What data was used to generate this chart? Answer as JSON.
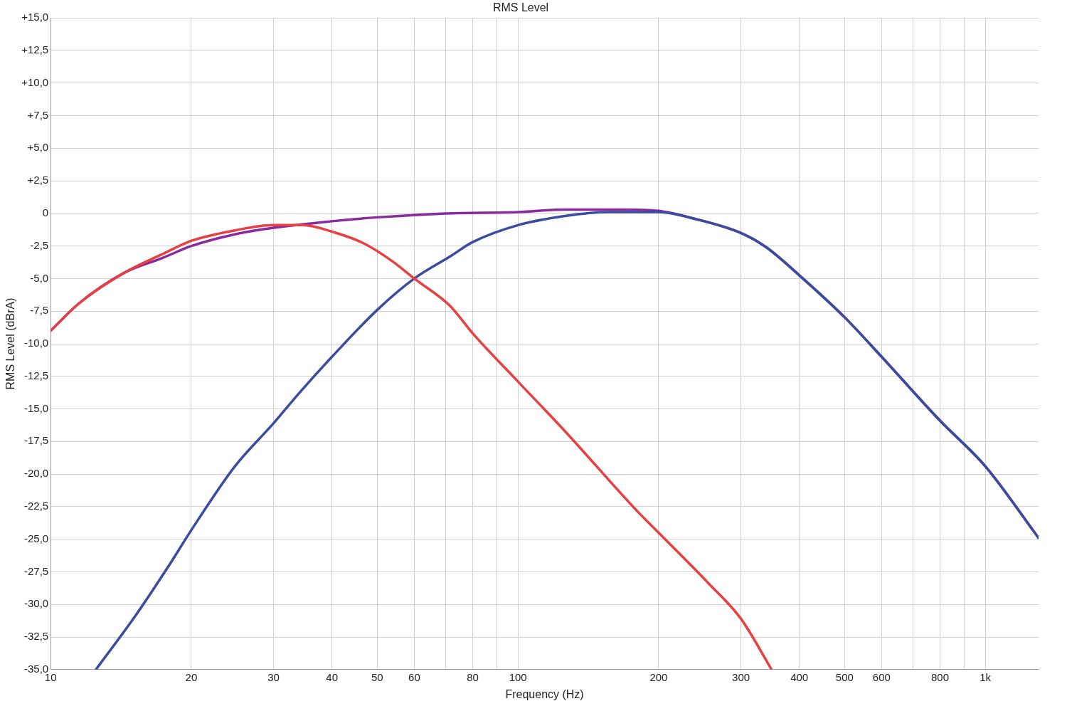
{
  "chart_data": {
    "type": "line",
    "title": "RMS Level",
    "xlabel": "Frequency (Hz)",
    "ylabel": "RMS Level (dBrA)",
    "log": "x",
    "grid": true,
    "legend": false,
    "marker": "none",
    "line_style": "solid",
    "xlim": [
      10,
      1300
    ],
    "ylim": [
      -35,
      15
    ],
    "xticks": [
      10,
      20,
      30,
      40,
      50,
      60,
      {
        "value": 70,
        "label": null
      },
      80,
      {
        "value": 90,
        "label": null
      },
      100,
      200,
      300,
      400,
      500,
      600,
      {
        "value": 700,
        "label": null
      },
      800,
      {
        "value": 900,
        "label": null
      },
      {
        "value": 1000,
        "label": "1k"
      }
    ],
    "yticks": [
      {
        "value": 15,
        "label": "+15,0"
      },
      {
        "value": 12.5,
        "label": "+12,5"
      },
      {
        "value": 10,
        "label": "+10,0"
      },
      {
        "value": 7.5,
        "label": "+7,5"
      },
      {
        "value": 5,
        "label": "+5,0"
      },
      {
        "value": 2.5,
        "label": "+2,5"
      },
      0,
      {
        "value": -2.5,
        "label": "-2,5"
      },
      {
        "value": -5,
        "label": "-5,0"
      },
      {
        "value": -7.5,
        "label": "-7,5"
      },
      {
        "value": -10,
        "label": "-10,0"
      },
      {
        "value": -12.5,
        "label": "-12,5"
      },
      {
        "value": -15,
        "label": "-15,0"
      },
      {
        "value": -17.5,
        "label": "-17,5"
      },
      {
        "value": -20,
        "label": "-20,0"
      },
      {
        "value": -22.5,
        "label": "-22,5"
      },
      {
        "value": -25,
        "label": "-25,0"
      },
      {
        "value": -27.5,
        "label": "-27,5"
      },
      {
        "value": -30,
        "label": "-30,0"
      },
      {
        "value": -32.5,
        "label": "-32,5"
      },
      {
        "value": -35,
        "label": "-35,0"
      }
    ],
    "series": [
      {
        "color": "#e84040",
        "x": [
          10,
          11.5,
          14.3,
          17.4,
          20,
          24.8,
          30,
          34.6,
          40,
          46.8,
          54,
          60,
          71.6,
          80,
          100,
          126,
          179.5,
          200,
          256,
          300,
          349
        ],
        "values": [
          -9.0,
          -6.9,
          -4.6,
          -3.1,
          -2.1,
          -1.3,
          -0.9,
          -0.9,
          -1.4,
          -2.3,
          -3.7,
          -5.0,
          -7.1,
          -9.2,
          -12.9,
          -16.7,
          -22.8,
          -24.5,
          -28.4,
          -31.1,
          -35.0
        ]
      },
      {
        "color": "#3b4ca0",
        "x": [
          12.5,
          15.1,
          18,
          20,
          24.8,
          30,
          34,
          40,
          50,
          60,
          71.6,
          80,
          100,
          126,
          156,
          200,
          238,
          300,
          340,
          400,
          501,
          600,
          800,
          1000,
          1300
        ],
        "values": [
          -35.0,
          -31.0,
          -26.9,
          -24.3,
          -19.4,
          -16.1,
          -13.8,
          -11.0,
          -7.4,
          -5.0,
          -3.3,
          -2.2,
          -0.9,
          -0.2,
          0.1,
          0.1,
          -0.4,
          -1.5,
          -2.6,
          -4.75,
          -8.0,
          -11.0,
          -15.9,
          -19.4,
          -24.9
        ]
      },
      {
        "color": "#8b2a9e",
        "x": [
          10,
          11.5,
          14.3,
          17.4,
          20,
          24.8,
          30,
          40,
          50,
          70,
          100,
          126,
          167,
          200,
          238,
          300,
          340,
          400,
          501,
          600,
          800,
          1000,
          1300
        ],
        "values": [
          -9.0,
          -6.9,
          -4.6,
          -3.4,
          -2.5,
          -1.6,
          -1.1,
          -0.6,
          -0.3,
          0.0,
          0.1,
          0.3,
          0.3,
          0.2,
          -0.4,
          -1.5,
          -2.6,
          -4.75,
          -8.0,
          -11.0,
          -15.9,
          -19.4,
          -24.9
        ]
      }
    ]
  }
}
